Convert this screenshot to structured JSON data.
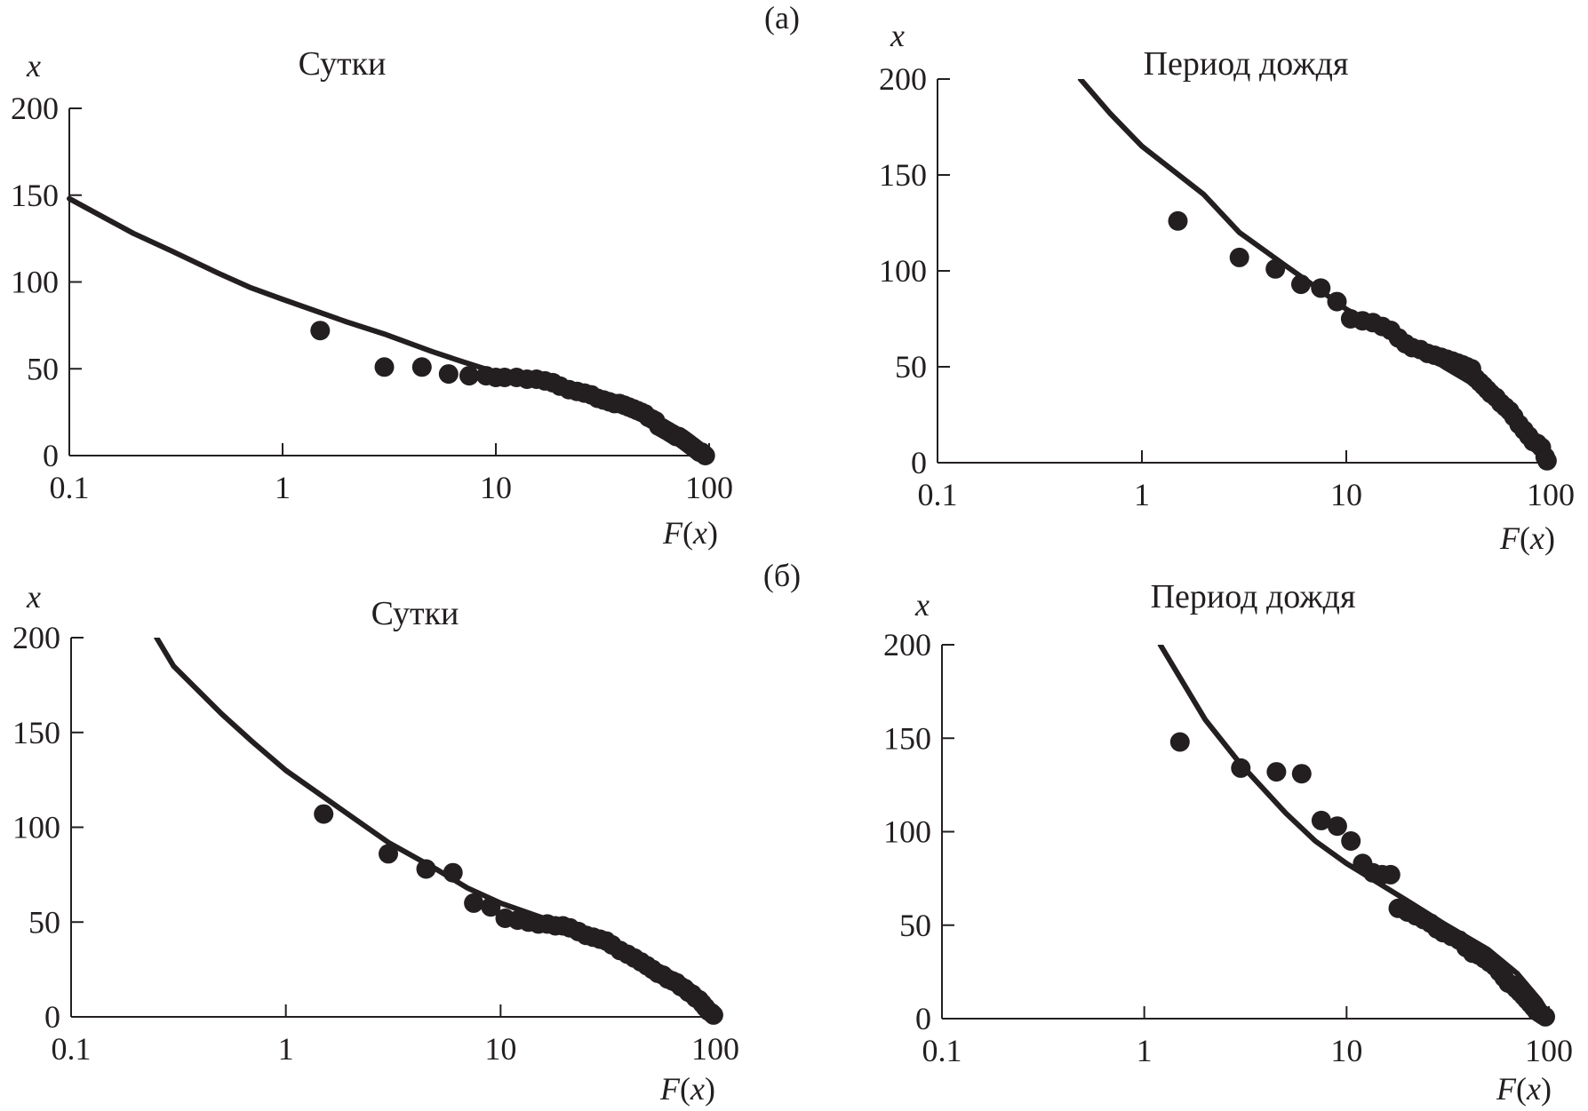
{
  "groups": [
    {
      "label": "(а)"
    },
    {
      "label": "(б)"
    }
  ],
  "chart_data": [
    {
      "type": "scatter",
      "group": "(а)",
      "title": "Сутки",
      "xlabel": "F(x)",
      "ylabel": "x",
      "xscale": "log",
      "xlim": [
        0.1,
        100
      ],
      "ylim": [
        0,
        200
      ],
      "xticks": [
        "0.1",
        "1",
        "10",
        "100"
      ],
      "yticks": [
        "0",
        "50",
        "100",
        "150",
        "200"
      ],
      "series": [
        {
          "kind": "points",
          "x": [
            1.5,
            3,
            4.5,
            6,
            7.5,
            9,
            10,
            11,
            12.5,
            14,
            15.5,
            17,
            18.5,
            20,
            22,
            24,
            26,
            28,
            30,
            32,
            34,
            36,
            38,
            40,
            42,
            44,
            46,
            48,
            50,
            52,
            54,
            56,
            58,
            60,
            62,
            64,
            66,
            68,
            70,
            72,
            74,
            76,
            78,
            80,
            82,
            84,
            86,
            88,
            90,
            92,
            94,
            96
          ],
          "y": [
            72,
            51,
            51,
            47,
            46,
            46,
            45,
            45,
            45,
            44,
            44,
            43,
            42,
            40,
            38,
            37,
            36,
            35,
            33,
            32,
            31,
            30,
            30,
            29,
            28,
            27,
            26,
            25,
            24,
            22,
            21,
            20,
            17,
            16,
            15,
            14,
            13,
            12,
            11,
            11,
            10,
            9,
            8,
            7,
            6,
            5,
            4,
            3,
            2,
            2,
            1,
            0
          ]
        },
        {
          "kind": "line",
          "x": [
            0.1,
            0.2,
            0.3,
            0.5,
            0.7,
            1,
            2,
            3,
            5,
            7,
            10,
            20,
            30,
            50,
            70,
            90,
            100
          ],
          "y": [
            148,
            128,
            118,
            105,
            97,
            90,
            77,
            70,
            60,
            54,
            48,
            40,
            34,
            24,
            16,
            6,
            1
          ]
        }
      ]
    },
    {
      "type": "scatter",
      "group": "(а)",
      "title": "Период дождя",
      "xlabel": "F(x)",
      "ylabel": "x",
      "xscale": "log",
      "xlim": [
        0.1,
        100
      ],
      "ylim": [
        0,
        200
      ],
      "xticks": [
        "0.1",
        "1",
        "10",
        "100"
      ],
      "yticks": [
        "0",
        "50",
        "100",
        "150",
        "200"
      ],
      "series": [
        {
          "kind": "points",
          "x": [
            1.5,
            3,
            4.5,
            6,
            7.5,
            9,
            10.5,
            12,
            13.5,
            15,
            16.5,
            18,
            19.5,
            21,
            23,
            25,
            27,
            29,
            31,
            33,
            35,
            37,
            39,
            41,
            43,
            45,
            47,
            49,
            51,
            54,
            57,
            60,
            63,
            66,
            70,
            74,
            78,
            82,
            86,
            90,
            94,
            96
          ],
          "y": [
            126,
            107,
            101,
            93,
            91,
            84,
            75,
            74,
            73,
            71,
            69,
            65,
            62,
            60,
            59,
            57,
            56,
            55,
            54,
            53,
            52,
            51,
            50,
            49,
            44,
            42,
            40,
            38,
            36,
            34,
            31,
            29,
            27,
            24,
            20,
            17,
            14,
            11,
            10,
            8,
            3,
            1
          ]
        },
        {
          "kind": "line",
          "x": [
            0.5,
            0.7,
            1,
            2,
            3,
            5,
            7,
            10,
            20,
            30,
            50,
            70,
            90,
            95
          ],
          "y": [
            200,
            182,
            165,
            140,
            120,
            103,
            92,
            80,
            62,
            50,
            36,
            23,
            8,
            2
          ]
        }
      ]
    },
    {
      "type": "scatter",
      "group": "(б)",
      "title": "Сутки",
      "xlabel": "F(x)",
      "ylabel": "x",
      "xscale": "log",
      "xlim": [
        0.1,
        100
      ],
      "ylim": [
        0,
        200
      ],
      "xticks": [
        "0.1",
        "1",
        "10",
        "100"
      ],
      "yticks": [
        "0",
        "50",
        "100",
        "150",
        "200"
      ],
      "series": [
        {
          "kind": "points",
          "x": [
            1.5,
            3,
            4.5,
            6,
            7.5,
            9,
            10.5,
            12,
            13.5,
            15,
            16.5,
            18,
            19.5,
            21,
            23,
            25,
            27,
            29,
            31,
            33,
            36,
            39,
            42,
            45,
            48,
            51,
            54,
            57,
            60,
            63,
            66,
            69,
            72,
            75,
            78,
            81,
            84,
            87,
            90,
            93,
            96,
            98
          ],
          "y": [
            107,
            86,
            78,
            76,
            60,
            58,
            52,
            51,
            50,
            49,
            49,
            48,
            48,
            47,
            45,
            43,
            42,
            41,
            40,
            38,
            35,
            33,
            31,
            29,
            27,
            25,
            23,
            22,
            20,
            19,
            18,
            16,
            15,
            13,
            12,
            10,
            9,
            7,
            5,
            3,
            2,
            1
          ]
        },
        {
          "kind": "line",
          "x": [
            0.25,
            0.3,
            0.5,
            0.7,
            1,
            2,
            3,
            5,
            7,
            10,
            20,
            30,
            50,
            70,
            90,
            100
          ],
          "y": [
            200,
            185,
            160,
            145,
            130,
            106,
            92,
            78,
            68,
            60,
            48,
            40,
            28,
            20,
            10,
            2
          ]
        }
      ]
    },
    {
      "type": "scatter",
      "group": "(б)",
      "title": "Период дождя",
      "xlabel": "F(x)",
      "ylabel": "x",
      "xscale": "log",
      "xlim": [
        0.1,
        100
      ],
      "ylim": [
        0,
        200
      ],
      "xticks": [
        "0.1",
        "1",
        "10",
        "100"
      ],
      "yticks": [
        "0",
        "50",
        "100",
        "150",
        "200"
      ],
      "series": [
        {
          "kind": "points",
          "x": [
            1.5,
            3,
            4.5,
            6,
            7.5,
            9,
            10.5,
            12,
            13.5,
            15,
            16.5,
            18,
            20,
            22,
            24,
            26,
            28,
            30,
            33,
            36,
            39,
            42,
            45,
            48,
            51,
            54,
            57,
            60,
            63,
            66,
            69,
            72,
            75,
            78,
            81,
            84,
            87,
            90,
            93,
            96
          ],
          "y": [
            148,
            134,
            132,
            131,
            106,
            103,
            95,
            83,
            78,
            77,
            77,
            59,
            57,
            55,
            53,
            51,
            48,
            46,
            44,
            42,
            38,
            35,
            34,
            32,
            30,
            28,
            25,
            22,
            19,
            18,
            16,
            14,
            12,
            10,
            8,
            6,
            4,
            3,
            2,
            1
          ]
        },
        {
          "kind": "line",
          "x": [
            1.2,
            2,
            3,
            5,
            7,
            10,
            20,
            30,
            50,
            70,
            90,
            100
          ],
          "y": [
            200,
            160,
            136,
            110,
            95,
            83,
            63,
            51,
            37,
            24,
            10,
            2
          ]
        }
      ]
    }
  ]
}
